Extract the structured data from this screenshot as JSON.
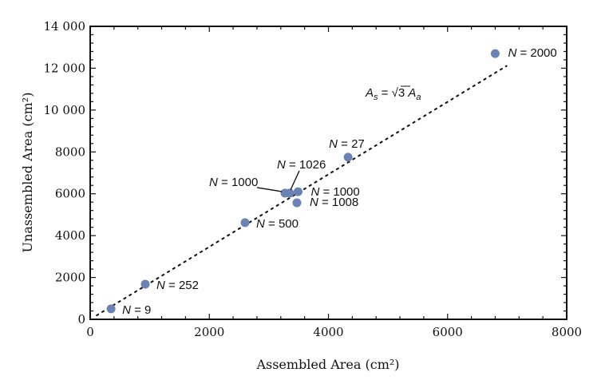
{
  "chart_data": {
    "type": "scatter",
    "xlabel": "Assembled  Area (cm²)",
    "ylabel": "Unassembled  Area (cm²)",
    "xlim": [
      0,
      8000
    ],
    "ylim": [
      0,
      14000
    ],
    "xticks": [
      "0",
      "2000",
      "4000",
      "6000",
      "8000"
    ],
    "yticks": [
      "0",
      "2000",
      "4000",
      "6000",
      "8000",
      "10 000",
      "12 000",
      "14 000"
    ],
    "grid": false,
    "point_color": "#6a82b4",
    "points": [
      {
        "x": 350,
        "y": 500,
        "label": "N = 9"
      },
      {
        "x": 925,
        "y": 1680,
        "label": "N = 252"
      },
      {
        "x": 2600,
        "y": 4620,
        "label": "N = 500"
      },
      {
        "x": 3270,
        "y": 6030,
        "label": "N = 1000"
      },
      {
        "x": 3350,
        "y": 6030,
        "label": "N = 1026"
      },
      {
        "x": 3490,
        "y": 6100,
        "label": "N = 1000"
      },
      {
        "x": 3470,
        "y": 5570,
        "label": "N = 1008"
      },
      {
        "x": 4330,
        "y": 7750,
        "label": "N = 27"
      },
      {
        "x": 6800,
        "y": 12700,
        "label": "N = 2000"
      }
    ],
    "fit_line": {
      "label": "As = √3 Aa",
      "slope": 1.732,
      "x_range": [
        100,
        7000
      ],
      "style": "dotted"
    }
  }
}
